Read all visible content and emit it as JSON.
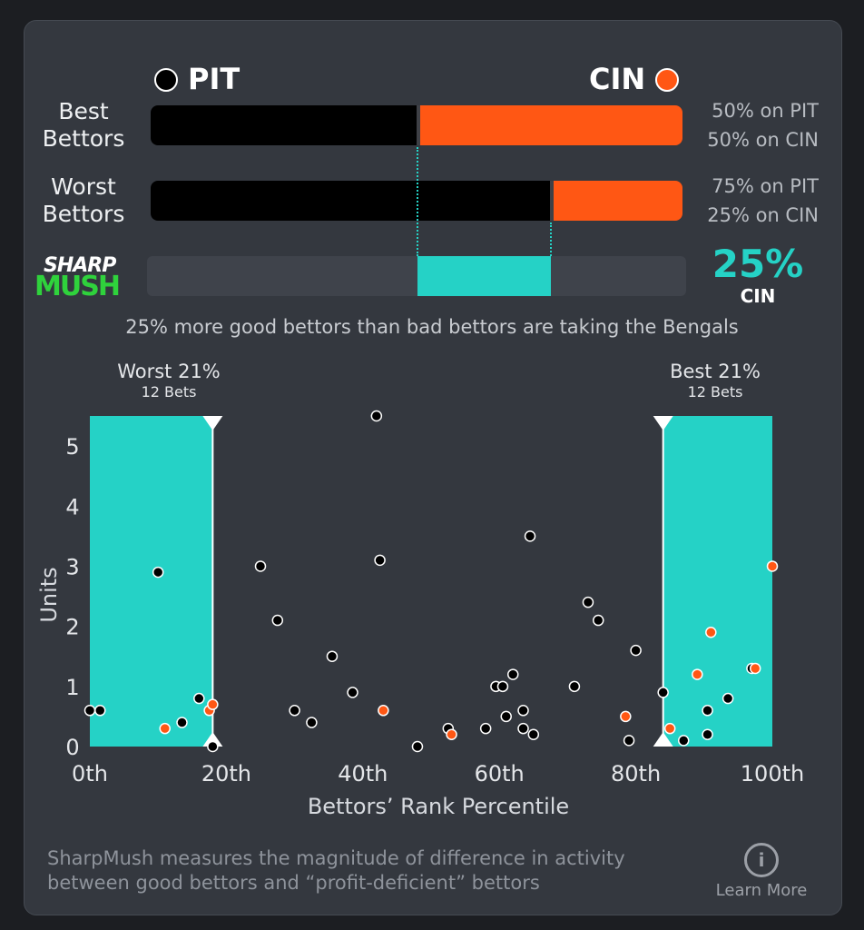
{
  "teams": {
    "left": {
      "name": "PIT",
      "color": "#000000"
    },
    "right": {
      "name": "CIN",
      "color": "#ff5714"
    }
  },
  "rows": [
    {
      "label_line1": "Best",
      "label_line2": "Bettors",
      "pit_pct": 50,
      "cin_pct": 50,
      "pit_text": "50% on PIT",
      "cin_text": "50% on CIN"
    },
    {
      "label_line1": "Worst",
      "label_line2": "Bettors",
      "pit_pct": 75,
      "cin_pct": 25,
      "pit_text": "75% on PIT",
      "cin_text": "25% on CIN"
    }
  ],
  "sharpmush": {
    "logo_top": "SHARP",
    "logo_bottom": "MUSH",
    "value": "25%",
    "team": "CIN",
    "segment_from_pct": 50,
    "segment_to_pct": 75,
    "color": "#25d2c6"
  },
  "caption": "25% more good bettors than bad bettors are taking the Bengals",
  "ranges": {
    "worst": {
      "title": "Worst 21%",
      "sub": "12 Bets"
    },
    "best": {
      "title": "Best 21%",
      "sub": "12 Bets"
    }
  },
  "chart_data": {
    "type": "scatter",
    "xlabel": "Bettors’ Rank Percentile",
    "ylabel": "Units",
    "xlim": [
      0,
      100
    ],
    "ylim": [
      0,
      5.5
    ],
    "x_ticks": [
      0,
      20,
      40,
      60,
      80,
      100
    ],
    "x_tick_labels": [
      "0th",
      "20th",
      "40th",
      "60th",
      "80th",
      "100th"
    ],
    "y_ticks": [
      0,
      1,
      2,
      3,
      4,
      5
    ],
    "y_tick_labels": [
      "0",
      "1",
      "2",
      "3",
      "4",
      "5"
    ],
    "highlight_ranges": [
      [
        0,
        18
      ],
      [
        84,
        100
      ]
    ],
    "series": [
      {
        "name": "PIT",
        "color": "#000000",
        "points": [
          [
            0,
            0.6
          ],
          [
            1.5,
            0.6
          ],
          [
            10,
            2.9
          ],
          [
            13.5,
            0.4
          ],
          [
            16,
            0.8
          ],
          [
            18,
            0
          ],
          [
            25,
            3.0
          ],
          [
            27.5,
            2.1
          ],
          [
            30,
            0.6
          ],
          [
            32.5,
            0.4
          ],
          [
            35.5,
            1.5
          ],
          [
            38.5,
            0.9
          ],
          [
            42,
            5.5
          ],
          [
            42.5,
            3.1
          ],
          [
            48,
            0
          ],
          [
            52.5,
            0.3
          ],
          [
            58,
            0.3
          ],
          [
            59.5,
            1.0
          ],
          [
            60.5,
            1.0
          ],
          [
            61,
            0.5
          ],
          [
            62,
            1.2
          ],
          [
            63.5,
            0.6
          ],
          [
            63.5,
            0.3
          ],
          [
            64.5,
            3.5
          ],
          [
            65,
            0.2
          ],
          [
            71,
            1.0
          ],
          [
            73,
            2.4
          ],
          [
            74.5,
            2.1
          ],
          [
            79,
            0.1
          ],
          [
            80,
            1.6
          ],
          [
            84,
            0.9
          ],
          [
            87,
            0.1
          ],
          [
            90.5,
            0.6
          ],
          [
            90.5,
            0.2
          ],
          [
            93.5,
            0.8
          ],
          [
            97,
            1.3
          ]
        ]
      },
      {
        "name": "CIN",
        "color": "#ff5714",
        "points": [
          [
            11,
            0.3
          ],
          [
            17.5,
            0.6
          ],
          [
            18,
            0.7
          ],
          [
            43,
            0.6
          ],
          [
            53,
            0.2
          ],
          [
            78.5,
            0.5
          ],
          [
            85,
            0.3
          ],
          [
            89,
            1.2
          ],
          [
            91,
            1.9
          ],
          [
            97.5,
            1.3
          ],
          [
            100,
            3.0
          ]
        ]
      }
    ]
  },
  "footer": {
    "text_line1": "SharpMush measures the magnitude of difference in activity",
    "text_line2": "between good bettors and “profit-deficient” bettors",
    "learn_more": "Learn More",
    "info_glyph": "i"
  }
}
